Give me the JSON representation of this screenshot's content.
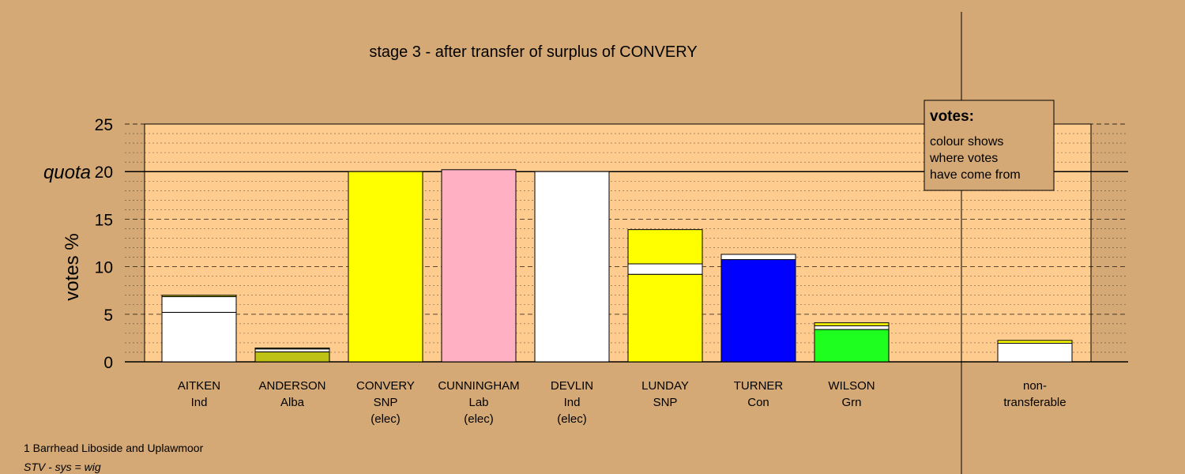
{
  "title": "stage 3 - after transfer of surplus of CONVERY",
  "footer": {
    "ward": "1 Barrhead Liboside and Uplawmoor",
    "system": "STV - sys = wig"
  },
  "legend": {
    "title": "votes:",
    "lines": [
      "colour shows",
      "where votes",
      "have come from"
    ]
  },
  "colors": {
    "page_bg": "#D4A975",
    "plot_bg": "#FFCC8F",
    "ind": "#FFFFFF",
    "alba": "#BFC216",
    "snp": "#FFFF00",
    "lab": "#FFB0C3",
    "con": "#0000FF",
    "grn": "#1FFF1F",
    "outline": "#000000"
  },
  "chart_data": {
    "type": "bar",
    "stacked": true,
    "ylabel": "votes %",
    "ylim": [
      0,
      25
    ],
    "yticks": [
      0,
      5,
      10,
      15,
      20,
      25
    ],
    "quota": {
      "label": "quota",
      "value": 20
    },
    "grid": true,
    "legend_position": "top-right",
    "bars": [
      {
        "name": "AITKEN",
        "party": "Ind",
        "elected": "",
        "segments": [
          {
            "color": "ind",
            "value": 5.2
          },
          {
            "color": "ind",
            "value": 1.65
          },
          {
            "color": "alba",
            "value": 0.15
          }
        ]
      },
      {
        "name": "ANDERSON",
        "party": "Alba",
        "elected": "",
        "segments": [
          {
            "color": "alba",
            "value": 1.05
          },
          {
            "color": "ind",
            "value": 0.3
          },
          {
            "color": "alba",
            "value": 0.1
          }
        ]
      },
      {
        "name": "CONVERY",
        "party": "SNP",
        "elected": "(elec)",
        "segments": [
          {
            "color": "snp",
            "value": 20.0
          }
        ]
      },
      {
        "name": "CUNNINGHAM",
        "party": "Lab",
        "elected": "(elec)",
        "segments": [
          {
            "color": "lab",
            "value": 20.2
          }
        ]
      },
      {
        "name": "DEVLIN",
        "party": "Ind",
        "elected": "(elec)",
        "segments": [
          {
            "color": "ind",
            "value": 20.0
          }
        ]
      },
      {
        "name": "LUNDAY",
        "party": "SNP",
        "elected": "",
        "segments": [
          {
            "color": "snp",
            "value": 9.2
          },
          {
            "color": "ind",
            "value": 1.1
          },
          {
            "color": "snp",
            "value": 3.6
          }
        ]
      },
      {
        "name": "TURNER",
        "party": "Con",
        "elected": "",
        "segments": [
          {
            "color": "con",
            "value": 10.75
          },
          {
            "color": "ind",
            "value": 0.55
          }
        ]
      },
      {
        "name": "WILSON",
        "party": "Grn",
        "elected": "",
        "segments": [
          {
            "color": "grn",
            "value": 3.4
          },
          {
            "color": "ind",
            "value": 0.4
          },
          {
            "color": "snp",
            "value": 0.3
          }
        ]
      }
    ],
    "nontransferable": {
      "label_lines": [
        "non-",
        "transferable"
      ],
      "segments": [
        {
          "color": "ind",
          "value": 1.95
        },
        {
          "color": "snp",
          "value": 0.3
        }
      ]
    }
  }
}
